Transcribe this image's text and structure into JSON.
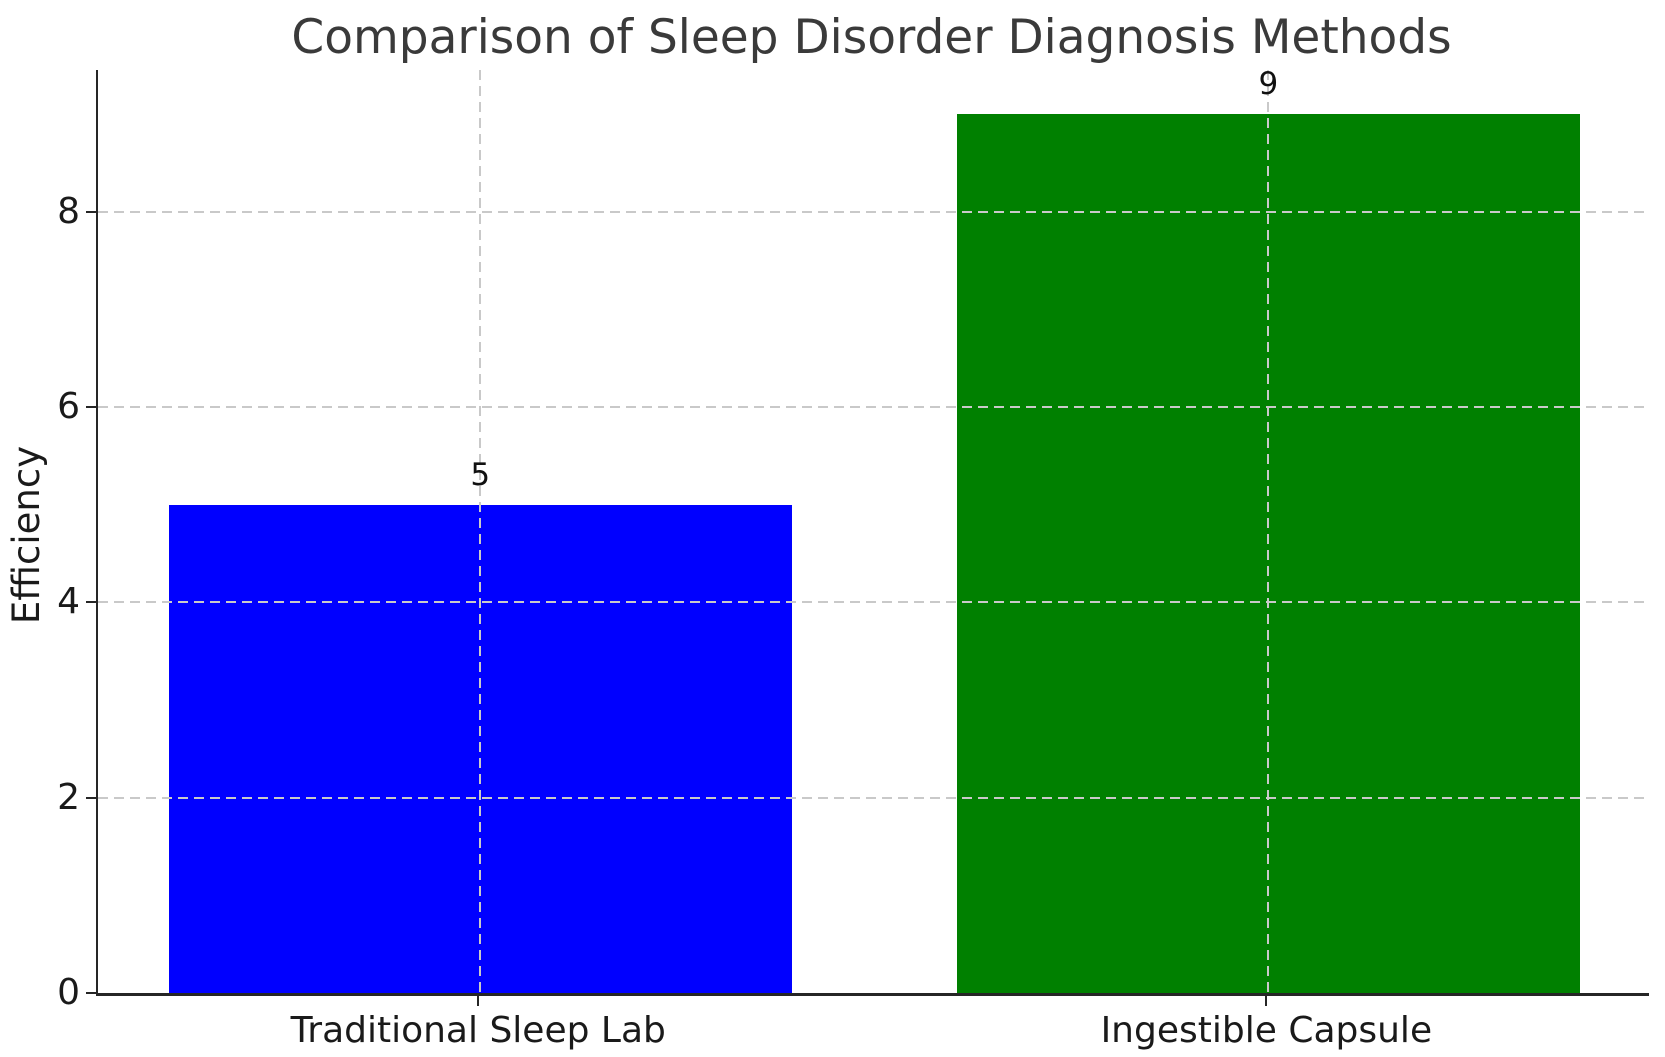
{
  "chart_data": {
    "type": "bar",
    "title": "Comparison of Sleep Disorder Diagnosis Methods",
    "xlabel": "",
    "ylabel": "Efficiency",
    "categories": [
      "Traditional Sleep Lab",
      "Ingestible Capsule"
    ],
    "values": [
      5,
      9
    ],
    "value_labels": [
      "5",
      "9"
    ],
    "bar_colors": [
      "#0000ff",
      "#008000"
    ],
    "yticks": [
      0,
      2,
      4,
      6,
      8
    ],
    "ylim": [
      0,
      9.45
    ],
    "bar_width": 0.79,
    "grid": "dashed gridlines on both axes, drawn above bars",
    "legend": "none"
  },
  "colors": {
    "background": "#ffffff",
    "bar_blue": "#0000ff",
    "bar_green": "#008000",
    "grid": "#c9c9c9",
    "axis": "#262626",
    "title_text": "#3a3a3a",
    "tick_text": "#1a1a1a"
  }
}
